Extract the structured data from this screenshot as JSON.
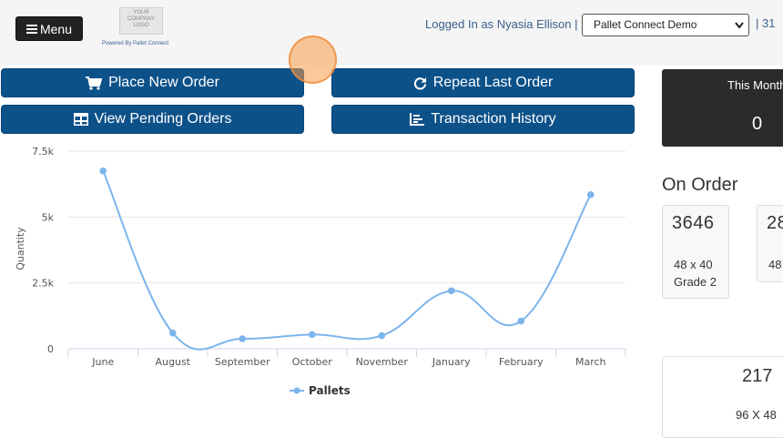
{
  "header": {
    "menu_label": "Menu",
    "logo_lines": [
      "YOUR",
      "COMPANY",
      "LOGO"
    ],
    "powered_by": "Powered By Pallet Connect",
    "logged_in": "Logged In as Nyasia Ellison",
    "separator": "|",
    "account_select": "Pallet Connect Demo",
    "trailing": "| 31"
  },
  "actions": {
    "place_order": "Place New Order",
    "repeat_order": "Repeat Last Order",
    "pending_orders": "View Pending Orders",
    "transaction_history": "Transaction History"
  },
  "summary": {
    "this_month_label": "This Month",
    "this_month_value": "0",
    "on_order_title": "On Order",
    "cards": [
      {
        "qty": "3646",
        "size": "48 x 40",
        "grade": "Grade 2"
      },
      {
        "qty": "28",
        "size": "48"
      }
    ],
    "bottom_card": {
      "qty": "217",
      "size": "96 X 48"
    }
  },
  "chart_data": {
    "type": "line",
    "smooth": true,
    "categories": [
      "June",
      "August",
      "September",
      "October",
      "November",
      "January",
      "February",
      "March"
    ],
    "series": [
      {
        "name": "Pallets",
        "values": [
          6750,
          600,
          380,
          540,
          500,
          2200,
          1050,
          5850
        ],
        "color": "#7cb5ec"
      }
    ],
    "ylabel": "Quantity",
    "ylim": [
      0,
      7500
    ],
    "yticks": [
      0,
      2500,
      5000,
      7500
    ],
    "ytick_labels": [
      "0",
      "2.5k",
      "5k",
      "7.5k"
    ],
    "grid": true,
    "legend": "bottom-center"
  }
}
